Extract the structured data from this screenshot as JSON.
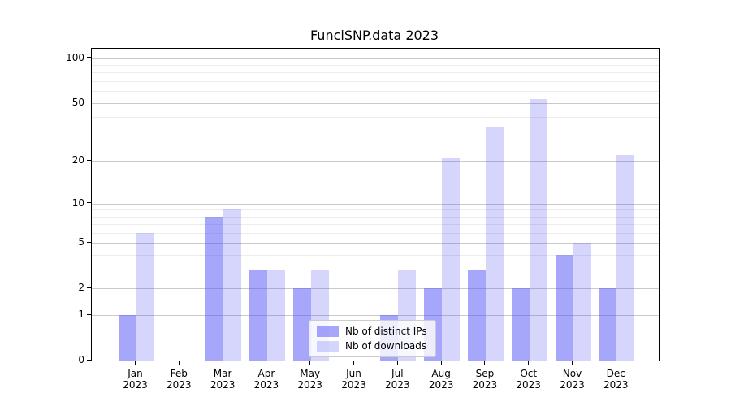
{
  "title": "FunciSNP.data 2023",
  "chart_data": {
    "type": "bar",
    "title": "FunciSNP.data 2023",
    "categories": [
      "Jan",
      "Feb",
      "Mar",
      "Apr",
      "May",
      "Jun",
      "Jul",
      "Aug",
      "Sep",
      "Oct",
      "Nov",
      "Dec"
    ],
    "x_year_label": "2023",
    "series": [
      {
        "name": "Nb of distinct IPs",
        "color": "rgba(85,85,245,0.52)",
        "values": [
          1,
          0,
          8,
          3,
          2,
          0,
          1,
          2,
          3,
          2,
          4,
          2
        ]
      },
      {
        "name": "Nb of downloads",
        "color": "rgba(85,85,245,0.24)",
        "values": [
          6,
          0,
          9,
          3,
          3,
          0,
          3,
          21,
          34,
          53,
          5,
          22
        ]
      }
    ],
    "y_scale": "log1p",
    "y_ticks": [
      0,
      1,
      2,
      5,
      10,
      20,
      50,
      100
    ],
    "y_minor_gridlines": [
      3,
      4,
      6,
      7,
      8,
      9,
      30,
      40,
      60,
      70,
      80,
      90
    ],
    "ylim": [
      0,
      116
    ],
    "grid": "major+minor",
    "legend_position": "lower center",
    "colors": {
      "axis": "#000000",
      "major_grid": "#c9c9c9",
      "minor_grid": "#ececec",
      "background": "#ffffff",
      "bar_ips": "rgba(85,85,245,0.52)",
      "bar_downloads": "rgba(85,85,245,0.24)"
    }
  }
}
